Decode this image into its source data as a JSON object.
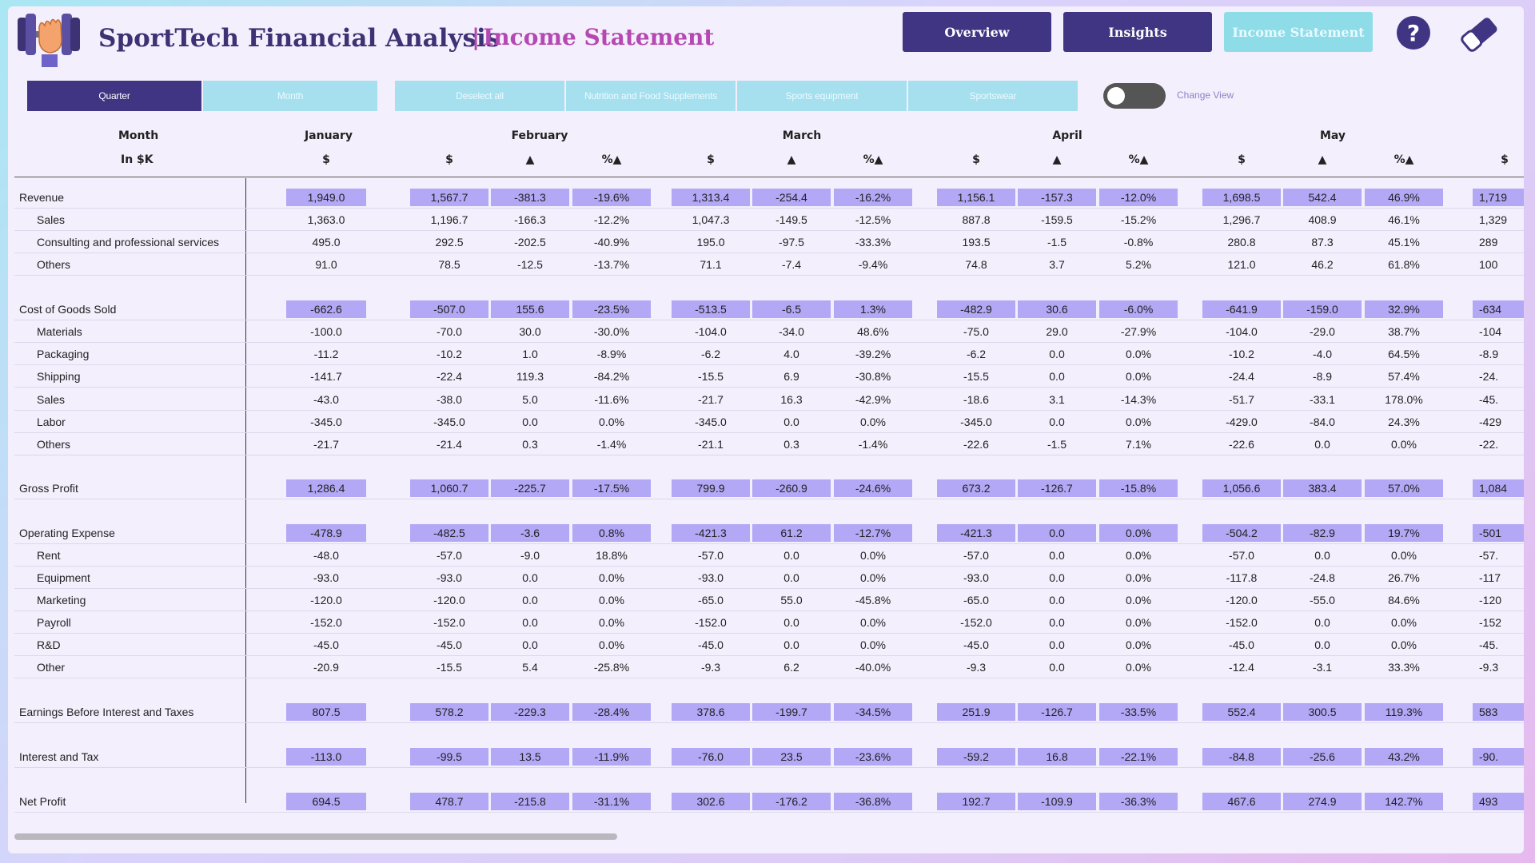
{
  "header": {
    "title": "SportTech Financial Analysis",
    "subtitle": "Income Statement",
    "nav": [
      "Overview",
      "Insights",
      "Income Statement"
    ]
  },
  "filters": {
    "buttons": [
      "Quarter",
      "Month",
      "Deselect all",
      "Nutrition and Food Supplements",
      "Sports equipment",
      "Sportswear"
    ],
    "active": "Quarter",
    "toggle_label": "Change View"
  },
  "table": {
    "row_header": "Month",
    "unit_header": "In $K",
    "col_symbols": [
      "$",
      "▲",
      "%▲"
    ],
    "months": [
      "January",
      "February",
      "March",
      "April",
      "May"
    ],
    "next_month_values": {
      "Revenue": "1,719",
      "Sales": "1,329",
      "Consulting and professional services": "289",
      "Others": "100",
      "Cost of Goods Sold": "-634",
      "Materials": "-104",
      "Packaging": "-8.9",
      "Shipping": "-24.",
      "Sales2": "-45.",
      "Labor": "-429",
      "Others2": "-22.",
      "Gross Profit": "1,084",
      "Operating Expense": "-501",
      "Rent": "-57.",
      "Equipment": "-117",
      "Marketing": "-120",
      "Payroll": "-152",
      "R&D": "-45.",
      "Other": "-9.3",
      "Earnings Before Interest and Taxes": "583",
      "Interest and Tax": "-90.",
      "Net Profit": "493"
    },
    "rows": [
      {
        "label": "Revenue",
        "indent": false,
        "hl": true,
        "v": [
          "1,949.0",
          "1,567.7",
          "-381.3",
          "-19.6%",
          "1,313.4",
          "-254.4",
          "-16.2%",
          "1,156.1",
          "-157.3",
          "-12.0%",
          "1,698.5",
          "542.4",
          "46.9%",
          "1,719"
        ]
      },
      {
        "label": "Sales",
        "indent": true,
        "hl": false,
        "v": [
          "1,363.0",
          "1,196.7",
          "-166.3",
          "-12.2%",
          "1,047.3",
          "-149.5",
          "-12.5%",
          "887.8",
          "-159.5",
          "-15.2%",
          "1,296.7",
          "408.9",
          "46.1%",
          "1,329"
        ]
      },
      {
        "label": "Consulting and professional services",
        "indent": true,
        "hl": false,
        "v": [
          "495.0",
          "292.5",
          "-202.5",
          "-40.9%",
          "195.0",
          "-97.5",
          "-33.3%",
          "193.5",
          "-1.5",
          "-0.8%",
          "280.8",
          "87.3",
          "45.1%",
          "289"
        ]
      },
      {
        "label": "Others",
        "indent": true,
        "hl": false,
        "v": [
          "91.0",
          "78.5",
          "-12.5",
          "-13.7%",
          "71.1",
          "-7.4",
          "-9.4%",
          "74.8",
          "3.7",
          "5.2%",
          "121.0",
          "46.2",
          "61.8%",
          "100"
        ]
      },
      {
        "label": "Cost of Goods Sold",
        "indent": false,
        "hl": true,
        "v": [
          "-662.6",
          "-507.0",
          "155.6",
          "-23.5%",
          "-513.5",
          "-6.5",
          "1.3%",
          "-482.9",
          "30.6",
          "-6.0%",
          "-641.9",
          "-159.0",
          "32.9%",
          "-634"
        ]
      },
      {
        "label": "Materials",
        "indent": true,
        "hl": false,
        "v": [
          "-100.0",
          "-70.0",
          "30.0",
          "-30.0%",
          "-104.0",
          "-34.0",
          "48.6%",
          "-75.0",
          "29.0",
          "-27.9%",
          "-104.0",
          "-29.0",
          "38.7%",
          "-104"
        ]
      },
      {
        "label": "Packaging",
        "indent": true,
        "hl": false,
        "v": [
          "-11.2",
          "-10.2",
          "1.0",
          "-8.9%",
          "-6.2",
          "4.0",
          "-39.2%",
          "-6.2",
          "0.0",
          "0.0%",
          "-10.2",
          "-4.0",
          "64.5%",
          "-8.9"
        ]
      },
      {
        "label": "Shipping",
        "indent": true,
        "hl": false,
        "v": [
          "-141.7",
          "-22.4",
          "119.3",
          "-84.2%",
          "-15.5",
          "6.9",
          "-30.8%",
          "-15.5",
          "0.0",
          "0.0%",
          "-24.4",
          "-8.9",
          "57.4%",
          "-24."
        ]
      },
      {
        "label": "Sales",
        "indent": true,
        "hl": false,
        "v": [
          "-43.0",
          "-38.0",
          "5.0",
          "-11.6%",
          "-21.7",
          "16.3",
          "-42.9%",
          "-18.6",
          "3.1",
          "-14.3%",
          "-51.7",
          "-33.1",
          "178.0%",
          "-45."
        ]
      },
      {
        "label": "Labor",
        "indent": true,
        "hl": false,
        "v": [
          "-345.0",
          "-345.0",
          "0.0",
          "0.0%",
          "-345.0",
          "0.0",
          "0.0%",
          "-345.0",
          "0.0",
          "0.0%",
          "-429.0",
          "-84.0",
          "24.3%",
          "-429"
        ]
      },
      {
        "label": "Others",
        "indent": true,
        "hl": false,
        "v": [
          "-21.7",
          "-21.4",
          "0.3",
          "-1.4%",
          "-21.1",
          "0.3",
          "-1.4%",
          "-22.6",
          "-1.5",
          "7.1%",
          "-22.6",
          "0.0",
          "0.0%",
          "-22."
        ]
      },
      {
        "label": "Gross Profit",
        "indent": false,
        "hl": true,
        "v": [
          "1,286.4",
          "1,060.7",
          "-225.7",
          "-17.5%",
          "799.9",
          "-260.9",
          "-24.6%",
          "673.2",
          "-126.7",
          "-15.8%",
          "1,056.6",
          "383.4",
          "57.0%",
          "1,084"
        ]
      },
      {
        "label": "Operating Expense",
        "indent": false,
        "hl": true,
        "v": [
          "-478.9",
          "-482.5",
          "-3.6",
          "0.8%",
          "-421.3",
          "61.2",
          "-12.7%",
          "-421.3",
          "0.0",
          "0.0%",
          "-504.2",
          "-82.9",
          "19.7%",
          "-501"
        ]
      },
      {
        "label": "Rent",
        "indent": true,
        "hl": false,
        "v": [
          "-48.0",
          "-57.0",
          "-9.0",
          "18.8%",
          "-57.0",
          "0.0",
          "0.0%",
          "-57.0",
          "0.0",
          "0.0%",
          "-57.0",
          "0.0",
          "0.0%",
          "-57."
        ]
      },
      {
        "label": "Equipment",
        "indent": true,
        "hl": false,
        "v": [
          "-93.0",
          "-93.0",
          "0.0",
          "0.0%",
          "-93.0",
          "0.0",
          "0.0%",
          "-93.0",
          "0.0",
          "0.0%",
          "-117.8",
          "-24.8",
          "26.7%",
          "-117"
        ]
      },
      {
        "label": "Marketing",
        "indent": true,
        "hl": false,
        "v": [
          "-120.0",
          "-120.0",
          "0.0",
          "0.0%",
          "-65.0",
          "55.0",
          "-45.8%",
          "-65.0",
          "0.0",
          "0.0%",
          "-120.0",
          "-55.0",
          "84.6%",
          "-120"
        ]
      },
      {
        "label": "Payroll",
        "indent": true,
        "hl": false,
        "v": [
          "-152.0",
          "-152.0",
          "0.0",
          "0.0%",
          "-152.0",
          "0.0",
          "0.0%",
          "-152.0",
          "0.0",
          "0.0%",
          "-152.0",
          "0.0",
          "0.0%",
          "-152"
        ]
      },
      {
        "label": "R&D",
        "indent": true,
        "hl": false,
        "v": [
          "-45.0",
          "-45.0",
          "0.0",
          "0.0%",
          "-45.0",
          "0.0",
          "0.0%",
          "-45.0",
          "0.0",
          "0.0%",
          "-45.0",
          "0.0",
          "0.0%",
          "-45."
        ]
      },
      {
        "label": "Other",
        "indent": true,
        "hl": false,
        "v": [
          "-20.9",
          "-15.5",
          "5.4",
          "-25.8%",
          "-9.3",
          "6.2",
          "-40.0%",
          "-9.3",
          "0.0",
          "0.0%",
          "-12.4",
          "-3.1",
          "33.3%",
          "-9.3"
        ]
      },
      {
        "label": "Earnings Before Interest and Taxes",
        "indent": false,
        "hl": true,
        "v": [
          "807.5",
          "578.2",
          "-229.3",
          "-28.4%",
          "378.6",
          "-199.7",
          "-34.5%",
          "251.9",
          "-126.7",
          "-33.5%",
          "552.4",
          "300.5",
          "119.3%",
          "583"
        ]
      },
      {
        "label": "Interest and Tax",
        "indent": false,
        "hl": true,
        "v": [
          "-113.0",
          "-99.5",
          "13.5",
          "-11.9%",
          "-76.0",
          "23.5",
          "-23.6%",
          "-59.2",
          "16.8",
          "-22.1%",
          "-84.8",
          "-25.6",
          "43.2%",
          "-90."
        ]
      },
      {
        "label": "Net Profit",
        "indent": false,
        "hl": true,
        "v": [
          "694.5",
          "478.7",
          "-215.8",
          "-31.1%",
          "302.6",
          "-176.2",
          "-36.8%",
          "192.7",
          "-109.9",
          "-36.3%",
          "467.6",
          "274.9",
          "142.7%",
          "493"
        ]
      }
    ]
  },
  "colors": {
    "nav_dark": "#3f3583",
    "nav_light": "#8fdce9",
    "highlight": "#b2a8f6",
    "title": "#3d3274",
    "subtitle": "#b548b3"
  },
  "icons": [
    "dumbbell-hand-logo-icon",
    "help-icon",
    "eraser-icon"
  ]
}
